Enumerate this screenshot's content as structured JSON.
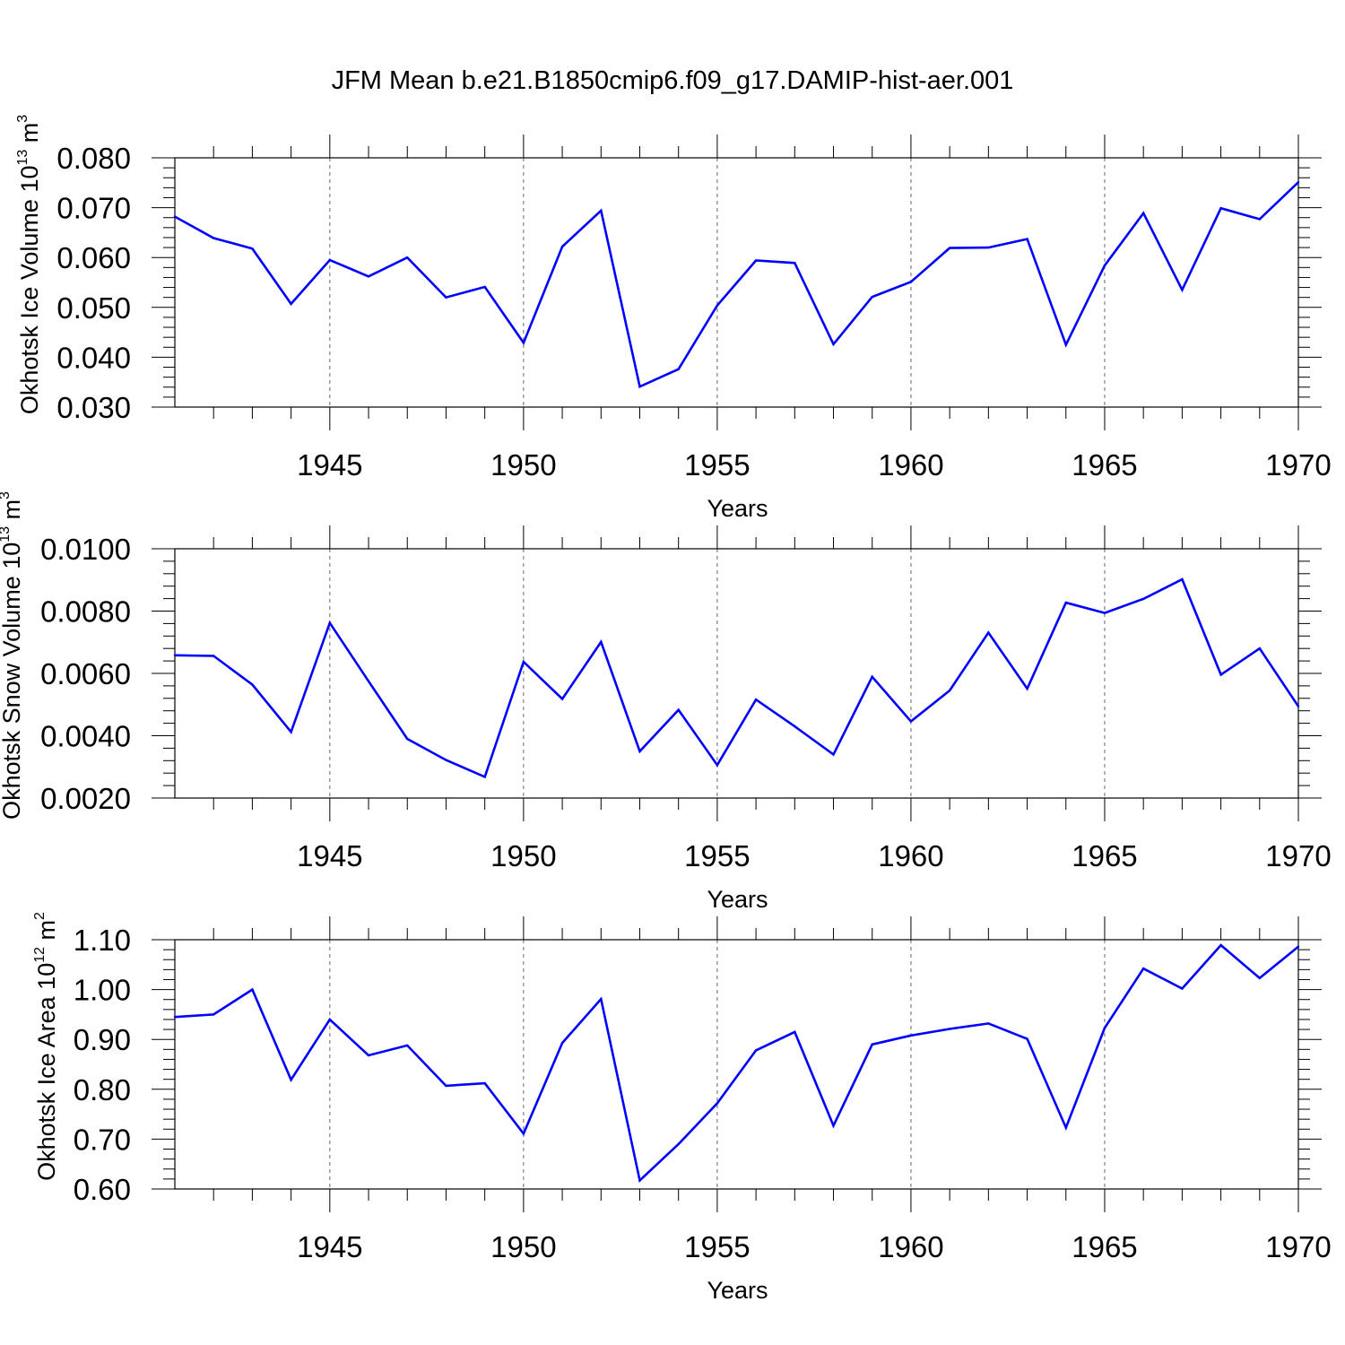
{
  "title": "JFM Mean b.e21.B1850cmip6.f09_g17.DAMIP-hist-aer.001",
  "colors": {
    "line": "#0000ff",
    "axis": "#000000",
    "grid": "#666666"
  },
  "chart_data": [
    {
      "type": "line",
      "ylabel": "Okhotsk Ice Volume",
      "unit_base": "10",
      "unit_exp": "13",
      "unit_tail": "m",
      "unit_tail_exp": "3",
      "xlabel": "Years",
      "xlim": [
        1941,
        1970
      ],
      "ylim": [
        0.03,
        0.08
      ],
      "yticks": [
        "0.080",
        "0.070",
        "0.060",
        "0.050",
        "0.040",
        "0.030"
      ],
      "xticks": [
        "1945",
        "1950",
        "1955",
        "1960",
        "1965",
        "1970"
      ],
      "x": [
        1941,
        1942,
        1943,
        1944,
        1945,
        1946,
        1947,
        1948,
        1949,
        1950,
        1951,
        1952,
        1953,
        1954,
        1955,
        1956,
        1957,
        1958,
        1959,
        1960,
        1961,
        1962,
        1963,
        1964,
        1965,
        1966,
        1967,
        1968,
        1969,
        1970
      ],
      "values": [
        0.0682,
        0.0639,
        0.0618,
        0.0507,
        0.0595,
        0.0562,
        0.06,
        0.052,
        0.0541,
        0.0429,
        0.0622,
        0.0694,
        0.0341,
        0.0376,
        0.0504,
        0.0594,
        0.0589,
        0.0426,
        0.0521,
        0.0551,
        0.0619,
        0.062,
        0.0637,
        0.0425,
        0.0584,
        0.0689,
        0.0535,
        0.0699,
        0.0677,
        0.0751
      ]
    },
    {
      "type": "line",
      "ylabel": "Okhotsk Snow Volume",
      "unit_base": "10",
      "unit_exp": "13",
      "unit_tail": "m",
      "unit_tail_exp": "3",
      "xlabel": "Years",
      "xlim": [
        1941,
        1970
      ],
      "ylim": [
        0.002,
        0.01
      ],
      "yticks": [
        "0.0100",
        "0.0080",
        "0.0060",
        "0.0040",
        "0.0020"
      ],
      "xticks": [
        "1945",
        "1950",
        "1955",
        "1960",
        "1965",
        "1970"
      ],
      "x": [
        1941,
        1942,
        1943,
        1944,
        1945,
        1946,
        1947,
        1948,
        1949,
        1950,
        1951,
        1952,
        1953,
        1954,
        1955,
        1956,
        1957,
        1958,
        1959,
        1960,
        1961,
        1962,
        1963,
        1964,
        1965,
        1966,
        1967,
        1968,
        1969,
        1970
      ],
      "values": [
        0.00658,
        0.00656,
        0.00564,
        0.00412,
        0.00762,
        0.00575,
        0.0039,
        0.00322,
        0.00268,
        0.00637,
        0.00518,
        0.00701,
        0.0035,
        0.00483,
        0.00306,
        0.00516,
        0.0043,
        0.0034,
        0.00589,
        0.00446,
        0.00545,
        0.00731,
        0.00551,
        0.00827,
        0.00794,
        0.00839,
        0.00902,
        0.00596,
        0.0068,
        0.00494
      ]
    },
    {
      "type": "line",
      "ylabel": "Okhotsk Ice Area",
      "unit_base": "10",
      "unit_exp": "12",
      "unit_tail": "m",
      "unit_tail_exp": "2",
      "xlabel": "Years",
      "xlim": [
        1941,
        1970
      ],
      "ylim": [
        0.6,
        1.1
      ],
      "yticks": [
        "1.10",
        "1.00",
        "0.90",
        "0.80",
        "0.70",
        "0.60"
      ],
      "xticks": [
        "1945",
        "1950",
        "1955",
        "1960",
        "1965",
        "1970"
      ],
      "x": [
        1941,
        1942,
        1943,
        1944,
        1945,
        1946,
        1947,
        1948,
        1949,
        1950,
        1951,
        1952,
        1953,
        1954,
        1955,
        1956,
        1957,
        1958,
        1959,
        1960,
        1961,
        1962,
        1963,
        1964,
        1965,
        1966,
        1967,
        1968,
        1969,
        1970
      ],
      "values": [
        0.945,
        0.95,
        1.0,
        0.819,
        0.94,
        0.868,
        0.888,
        0.807,
        0.812,
        0.711,
        0.893,
        0.981,
        0.617,
        0.69,
        0.772,
        0.878,
        0.915,
        0.727,
        0.89,
        0.908,
        0.921,
        0.932,
        0.901,
        0.723,
        0.923,
        1.042,
        1.002,
        1.089,
        1.023,
        1.086
      ]
    }
  ]
}
